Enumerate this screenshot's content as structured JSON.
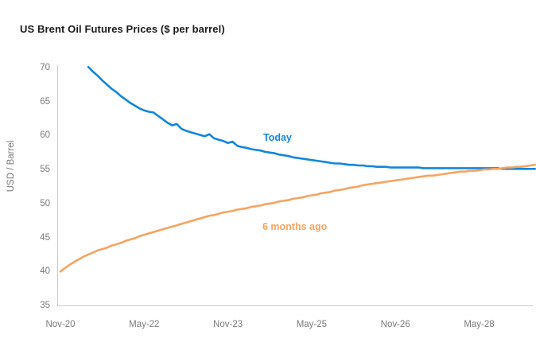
{
  "chart_data": {
    "type": "line",
    "title": "US Brent Oil Futures Prices ($ per barrel)",
    "xlabel": "",
    "ylabel": "USD / Barrel",
    "x_unit": "futures contract month (months after Nov-2020)",
    "x_tick_labels": [
      "Nov-20",
      "May-22",
      "Nov-23",
      "May-25",
      "Nov-26",
      "May-28"
    ],
    "x_tick_months": [
      0,
      18,
      36,
      54,
      72,
      90
    ],
    "y_ticks": [
      35,
      40,
      45,
      50,
      55,
      60,
      65,
      70
    ],
    "ylim": [
      34.4,
      70.4
    ],
    "xlim_months": [
      -0.7,
      102
    ],
    "grid": false,
    "legend_position": "inline-annotations",
    "series": [
      {
        "name": "Today",
        "color": "#1386DC",
        "start_month": 6,
        "values": [
          70.1,
          69.4,
          68.8,
          68.1,
          67.5,
          66.9,
          66.4,
          65.8,
          65.3,
          64.8,
          64.4,
          64.0,
          63.7,
          63.5,
          63.4,
          62.9,
          62.4,
          61.9,
          61.5,
          61.7,
          61.0,
          60.7,
          60.5,
          60.3,
          60.1,
          59.9,
          60.2,
          59.6,
          59.4,
          59.2,
          58.9,
          59.1,
          58.5,
          58.3,
          58.2,
          58.0,
          57.9,
          57.8,
          57.6,
          57.5,
          57.4,
          57.2,
          57.1,
          57.0,
          56.8,
          56.7,
          56.6,
          56.5,
          56.4,
          56.3,
          56.2,
          56.1,
          56.0,
          55.9,
          55.9,
          55.8,
          55.7,
          55.7,
          55.6,
          55.6,
          55.5,
          55.5,
          55.4,
          55.4,
          55.4,
          55.3,
          55.3,
          55.3,
          55.3,
          55.3,
          55.3,
          55.3,
          55.2,
          55.2,
          55.2,
          55.2,
          55.2,
          55.2,
          55.2,
          55.2,
          55.2,
          55.2,
          55.2,
          55.2,
          55.2,
          55.2,
          55.2,
          55.2,
          55.2,
          55.1,
          55.1,
          55.1,
          55.1,
          55.1,
          55.1,
          55.1,
          55.1
        ]
      },
      {
        "name": "6 months ago",
        "color": "#F6A462",
        "start_month": 0,
        "values": [
          40.0,
          40.5,
          41.0,
          41.4,
          41.8,
          42.2,
          42.5,
          42.8,
          43.1,
          43.3,
          43.5,
          43.8,
          44.0,
          44.2,
          44.5,
          44.7,
          44.9,
          45.2,
          45.4,
          45.6,
          45.8,
          46.0,
          46.2,
          46.4,
          46.6,
          46.8,
          47.0,
          47.2,
          47.4,
          47.6,
          47.8,
          48.0,
          48.2,
          48.3,
          48.5,
          48.7,
          48.8,
          48.9,
          49.1,
          49.2,
          49.3,
          49.5,
          49.6,
          49.7,
          49.9,
          50.0,
          50.1,
          50.3,
          50.4,
          50.5,
          50.7,
          50.8,
          50.9,
          51.1,
          51.2,
          51.3,
          51.5,
          51.6,
          51.7,
          51.9,
          52.0,
          52.1,
          52.3,
          52.4,
          52.5,
          52.7,
          52.8,
          52.9,
          53.0,
          53.1,
          53.2,
          53.3,
          53.4,
          53.5,
          53.6,
          53.7,
          53.8,
          53.9,
          54.0,
          54.1,
          54.1,
          54.2,
          54.3,
          54.4,
          54.5,
          54.6,
          54.7,
          54.7,
          54.8,
          54.8,
          54.9,
          55.0,
          55.0,
          55.1,
          55.1,
          55.2,
          55.3,
          55.3,
          55.4,
          55.4,
          55.5,
          55.6,
          55.7
        ]
      }
    ],
    "colors": {
      "title_text": "#1A1A1A",
      "tick_text": "#7B7B7B",
      "axis_line": "#C8C8C8"
    }
  }
}
